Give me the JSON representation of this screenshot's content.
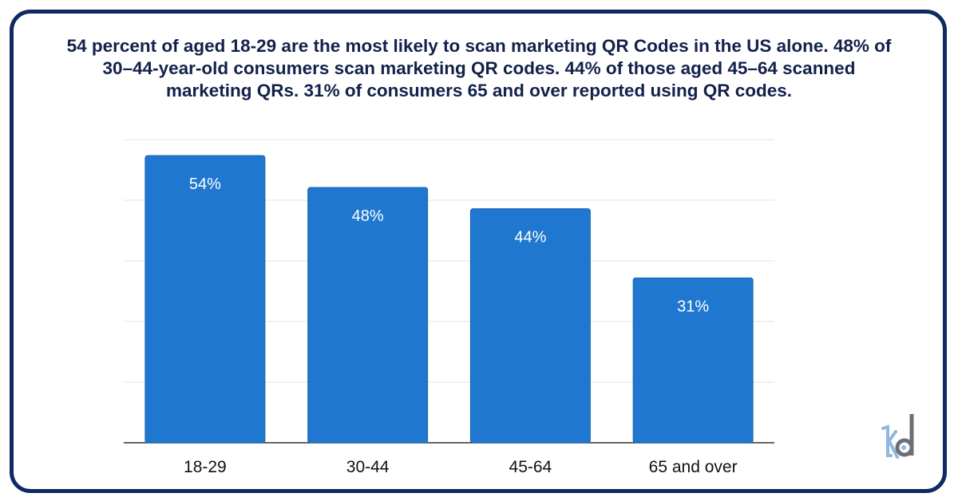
{
  "chart_data": {
    "type": "bar",
    "title": "54 percent of aged 18-29 are the most likely to scan marketing QR Codes in the US alone. 48% of 30–44-year-old consumers scan marketing QR codes. 44% of those aged 45–64 scanned marketing QRs. 31% of consumers 65 and over reported using QR codes.",
    "categories": [
      "18-29",
      "30-44",
      "45-64",
      "65 and over"
    ],
    "values": [
      54,
      48,
      44,
      31
    ],
    "data_labels": [
      "54%",
      "48%",
      "44%",
      "31%"
    ],
    "xlabel": "",
    "ylabel": "",
    "ylim": [
      0,
      57
    ],
    "grid": true,
    "bar_color": "#1f77d0",
    "frame_color": "#0f2a63",
    "title_color": "#13214a"
  },
  "logo": {
    "text": "kd"
  }
}
